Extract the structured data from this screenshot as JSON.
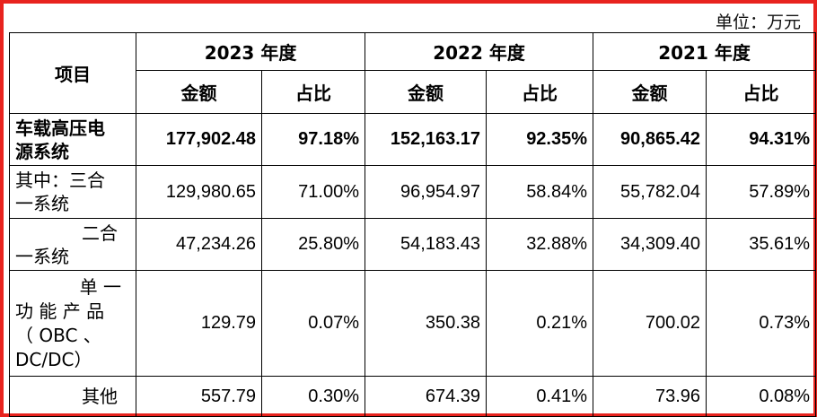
{
  "unit_label": "单位：万元",
  "header": {
    "item": "项目",
    "years": [
      "2023 年度",
      "2022 年度",
      "2021 年度"
    ],
    "amount": "金额",
    "ratio": "占比"
  },
  "rows": [
    {
      "label_lines": [
        "车载高压电",
        "源系统"
      ],
      "values": [
        "177,902.48",
        "97.18%",
        "152,163.17",
        "92.35%",
        "90,865.42",
        "94.31%"
      ]
    },
    {
      "label_lines": [
        "其中：三合",
        "一系统"
      ],
      "values": [
        "129,980.65",
        "71.00%",
        "96,954.97",
        "58.84%",
        "55,782.04",
        "57.89%"
      ]
    },
    {
      "label_lines": [
        "二合",
        "一系统"
      ],
      "values": [
        "47,234.26",
        "25.80%",
        "54,183.43",
        "32.88%",
        "34,309.40",
        "35.61%"
      ]
    },
    {
      "label_lines": [
        "单 一",
        "功 能 产 品",
        "（ OBC 、",
        "DC/DC）"
      ],
      "values": [
        "129.79",
        "0.07%",
        "350.38",
        "0.21%",
        "700.02",
        "0.73%"
      ]
    },
    {
      "label_lines": [
        "其他"
      ],
      "values": [
        "557.79",
        "0.30%",
        "674.39",
        "0.41%",
        "73.96",
        "0.08%"
      ]
    }
  ]
}
